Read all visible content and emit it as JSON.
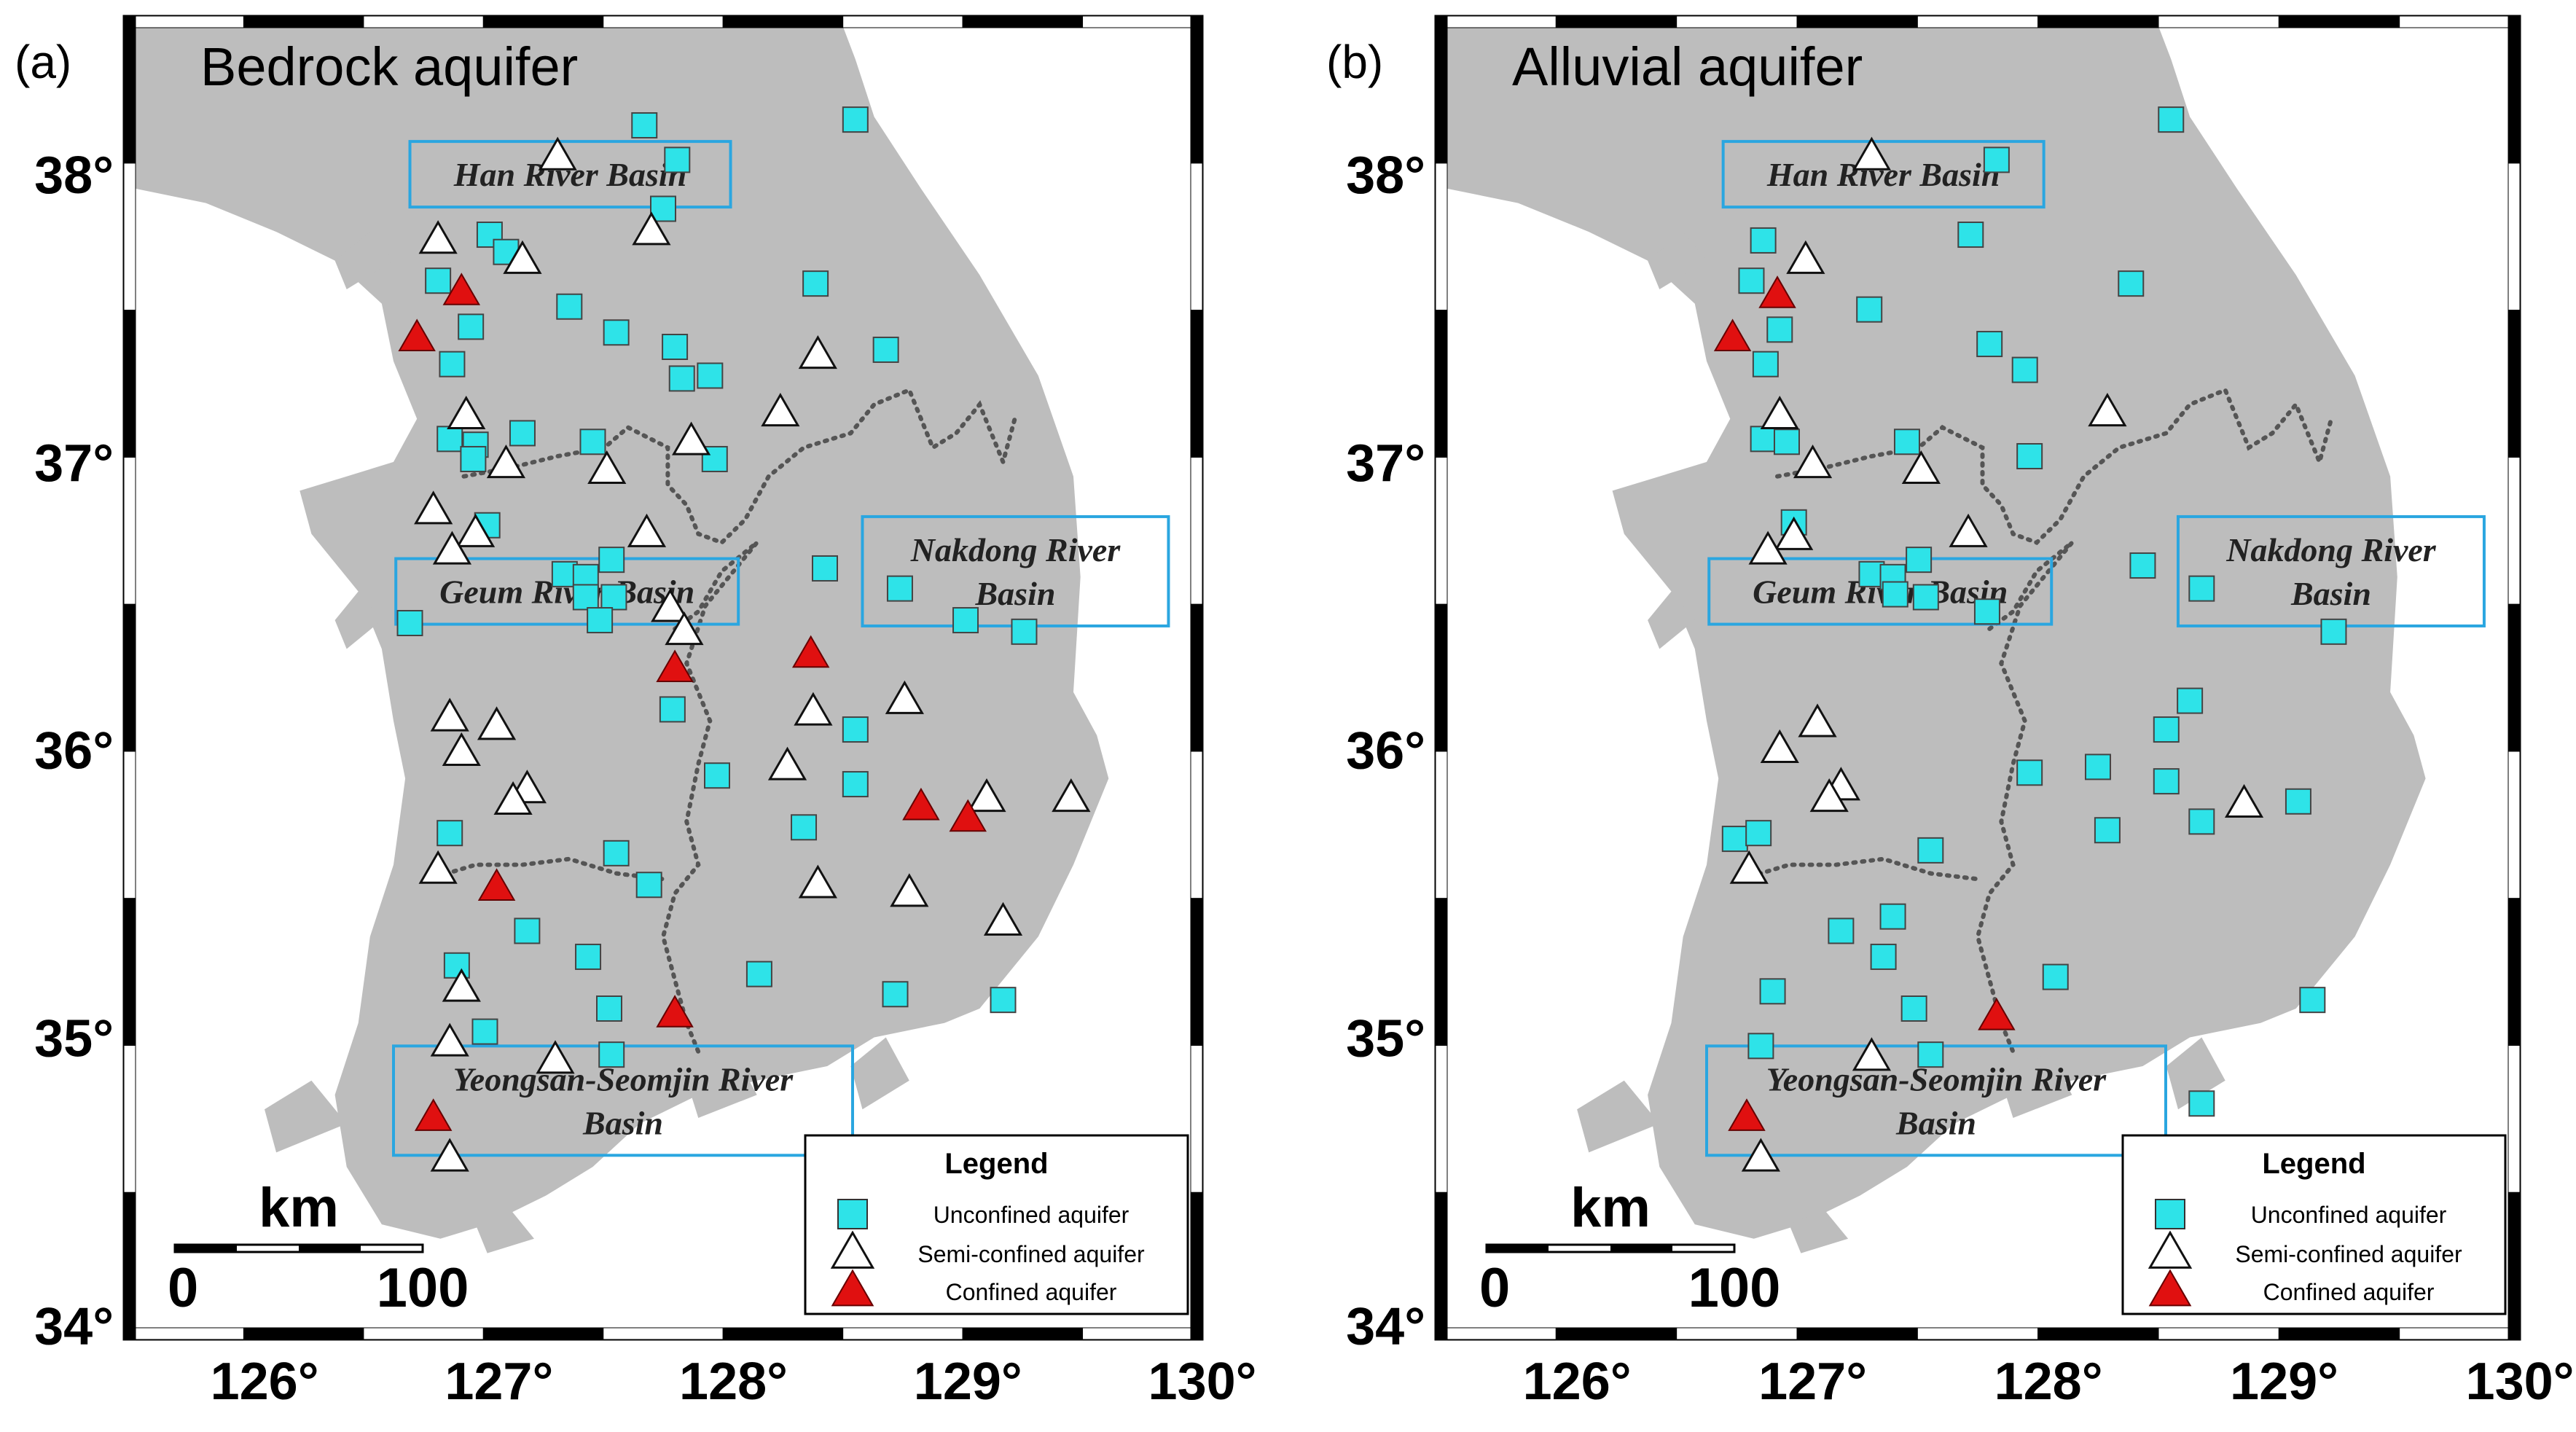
{
  "colors": {
    "land": "#bdbdbd",
    "sea": "#ffffff",
    "unconfined": "#2ee3e8",
    "confined": "#e01010",
    "semi": "#ffffff",
    "boundary": "#555555",
    "labelbox": "#2aa6e0"
  },
  "axis": {
    "lon_ticks": [
      "126°",
      "127°",
      "128°",
      "129°",
      "130°"
    ],
    "lat_ticks": [
      "38°",
      "37°",
      "36°",
      "35°",
      "34°"
    ],
    "lon_values": [
      126,
      127,
      128,
      129,
      130
    ],
    "lat_values": [
      38,
      37,
      36,
      35,
      34
    ],
    "lon_range": [
      125.4,
      130.0
    ],
    "lat_range": [
      33.95,
      38.55
    ]
  },
  "panels": [
    {
      "tag": "(a)",
      "title": "Bedrock aquifer",
      "basins": [
        "Han River Basin",
        "Geum River Basin",
        "Nakdong River",
        "Basin",
        "Yeongsan-Seomjin River",
        "Basin"
      ],
      "scale": {
        "unit": "km",
        "start": "0",
        "end": "100"
      },
      "legend": {
        "title": "Legend",
        "items": [
          "Unconfined aquifer",
          "Semi-confined aquifer",
          "Confined aquifer"
        ]
      },
      "unconfined": [
        [
          127.62,
          38.17
        ],
        [
          128.52,
          38.19
        ],
        [
          127.76,
          38.05
        ],
        [
          127.7,
          37.88
        ],
        [
          126.96,
          37.79
        ],
        [
          127.03,
          37.73
        ],
        [
          126.74,
          37.63
        ],
        [
          126.88,
          37.47
        ],
        [
          127.3,
          37.54
        ],
        [
          127.5,
          37.45
        ],
        [
          127.75,
          37.4
        ],
        [
          127.78,
          37.29
        ],
        [
          127.9,
          37.3
        ],
        [
          128.35,
          37.62
        ],
        [
          128.65,
          37.39
        ],
        [
          126.8,
          37.34
        ],
        [
          126.79,
          37.08
        ],
        [
          126.9,
          37.06
        ],
        [
          126.89,
          37.01
        ],
        [
          127.1,
          37.1
        ],
        [
          127.4,
          37.07
        ],
        [
          127.92,
          37.01
        ],
        [
          126.95,
          36.78
        ],
        [
          127.28,
          36.61
        ],
        [
          127.37,
          36.6
        ],
        [
          127.37,
          36.53
        ],
        [
          127.48,
          36.66
        ],
        [
          127.49,
          36.53
        ],
        [
          127.43,
          36.45
        ],
        [
          128.39,
          36.63
        ],
        [
          128.71,
          36.56
        ],
        [
          128.99,
          36.45
        ],
        [
          129.24,
          36.41
        ],
        [
          126.62,
          36.44
        ],
        [
          127.74,
          36.14
        ],
        [
          128.52,
          36.07
        ],
        [
          127.93,
          35.91
        ],
        [
          128.3,
          35.73
        ],
        [
          128.52,
          35.88
        ],
        [
          126.79,
          35.71
        ],
        [
          127.5,
          35.64
        ],
        [
          127.64,
          35.53
        ],
        [
          127.12,
          35.37
        ],
        [
          127.38,
          35.28
        ],
        [
          128.11,
          35.22
        ],
        [
          126.82,
          35.25
        ],
        [
          127.47,
          35.1
        ],
        [
          128.69,
          35.15
        ],
        [
          129.15,
          35.13
        ],
        [
          126.94,
          35.02
        ],
        [
          127.48,
          34.94
        ]
      ],
      "semi": [
        [
          127.25,
          38.06
        ],
        [
          127.65,
          37.8
        ],
        [
          126.74,
          37.77
        ],
        [
          127.1,
          37.7
        ],
        [
          128.36,
          37.37
        ],
        [
          128.2,
          37.17
        ],
        [
          126.86,
          37.16
        ],
        [
          127.82,
          37.07
        ],
        [
          127.03,
          36.99
        ],
        [
          127.46,
          36.97
        ],
        [
          126.72,
          36.83
        ],
        [
          126.9,
          36.75
        ],
        [
          126.8,
          36.69
        ],
        [
          127.63,
          36.75
        ],
        [
          127.73,
          36.49
        ],
        [
          127.79,
          36.41
        ],
        [
          128.34,
          36.13
        ],
        [
          128.73,
          36.17
        ],
        [
          126.79,
          36.11
        ],
        [
          126.99,
          36.08
        ],
        [
          126.84,
          35.99
        ],
        [
          128.23,
          35.94
        ],
        [
          127.12,
          35.86
        ],
        [
          127.06,
          35.82
        ],
        [
          129.08,
          35.83
        ],
        [
          129.44,
          35.83
        ],
        [
          126.74,
          35.58
        ],
        [
          128.36,
          35.53
        ],
        [
          128.75,
          35.5
        ],
        [
          129.15,
          35.4
        ],
        [
          126.84,
          35.17
        ],
        [
          126.79,
          34.98
        ],
        [
          127.24,
          34.92
        ],
        [
          126.79,
          34.58
        ]
      ],
      "confined": [
        [
          126.84,
          37.59
        ],
        [
          126.65,
          37.43
        ],
        [
          127.75,
          36.28
        ],
        [
          128.33,
          36.33
        ],
        [
          128.8,
          35.8
        ],
        [
          129.0,
          35.76
        ],
        [
          126.99,
          35.52
        ],
        [
          127.75,
          35.08
        ],
        [
          126.72,
          34.72
        ]
      ]
    },
    {
      "tag": "(b)",
      "title": "Alluvial aquifer",
      "basins": [
        "Han River Basin",
        "Geum River Basin",
        "Nakdong River",
        "Basin",
        "Yeongsan-Seomjin River",
        "Basin"
      ],
      "scale": {
        "unit": "km",
        "start": "0",
        "end": "100"
      },
      "legend": {
        "title": "Legend",
        "items": [
          "Unconfined aquifer",
          "Semi-confined aquifer",
          "Confined aquifer"
        ]
      },
      "unconfined": [
        [
          128.52,
          38.19
        ],
        [
          127.78,
          38.05
        ],
        [
          127.67,
          37.79
        ],
        [
          126.79,
          37.77
        ],
        [
          126.74,
          37.63
        ],
        [
          126.86,
          37.46
        ],
        [
          127.24,
          37.53
        ],
        [
          128.35,
          37.62
        ],
        [
          127.75,
          37.41
        ],
        [
          127.9,
          37.32
        ],
        [
          126.8,
          37.34
        ],
        [
          126.79,
          37.08
        ],
        [
          126.89,
          37.07
        ],
        [
          127.4,
          37.07
        ],
        [
          127.92,
          37.02
        ],
        [
          126.92,
          36.79
        ],
        [
          127.25,
          36.61
        ],
        [
          127.34,
          36.6
        ],
        [
          127.35,
          36.54
        ],
        [
          127.45,
          36.66
        ],
        [
          127.48,
          36.53
        ],
        [
          127.74,
          36.48
        ],
        [
          128.4,
          36.64
        ],
        [
          128.65,
          36.56
        ],
        [
          129.21,
          36.41
        ],
        [
          128.6,
          36.17
        ],
        [
          128.5,
          36.07
        ],
        [
          127.92,
          35.92
        ],
        [
          128.21,
          35.94
        ],
        [
          128.5,
          35.89
        ],
        [
          128.25,
          35.72
        ],
        [
          128.65,
          35.75
        ],
        [
          129.06,
          35.82
        ],
        [
          126.67,
          35.69
        ],
        [
          126.77,
          35.71
        ],
        [
          127.5,
          35.65
        ],
        [
          127.34,
          35.42
        ],
        [
          127.12,
          35.37
        ],
        [
          127.3,
          35.28
        ],
        [
          126.83,
          35.16
        ],
        [
          127.43,
          35.1
        ],
        [
          128.03,
          35.21
        ],
        [
          129.12,
          35.13
        ],
        [
          126.78,
          34.97
        ],
        [
          127.5,
          34.94
        ],
        [
          128.65,
          34.77
        ]
      ],
      "semi": [
        [
          127.25,
          38.06
        ],
        [
          126.97,
          37.7
        ],
        [
          128.25,
          37.17
        ],
        [
          126.86,
          37.16
        ],
        [
          127.0,
          36.99
        ],
        [
          127.46,
          36.97
        ],
        [
          126.92,
          36.74
        ],
        [
          126.81,
          36.69
        ],
        [
          127.66,
          36.75
        ],
        [
          127.02,
          36.09
        ],
        [
          126.86,
          36.0
        ],
        [
          127.12,
          35.87
        ],
        [
          127.07,
          35.83
        ],
        [
          128.83,
          35.81
        ],
        [
          126.73,
          35.58
        ],
        [
          127.25,
          34.93
        ],
        [
          126.78,
          34.58
        ]
      ],
      "confined": [
        [
          126.85,
          37.58
        ],
        [
          126.66,
          37.43
        ],
        [
          127.78,
          35.07
        ],
        [
          126.72,
          34.72
        ]
      ]
    }
  ]
}
